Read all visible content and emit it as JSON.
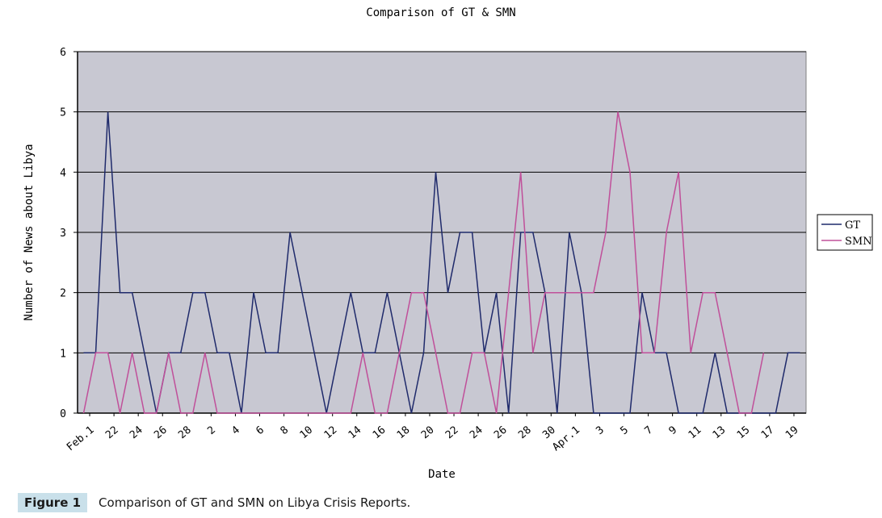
{
  "chart_data": {
    "type": "line",
    "title": "Comparison of GT & SMN",
    "xlabel": "Date",
    "ylabel": "Number of News about Libya",
    "ylim": [
      0,
      6
    ],
    "yticks": [
      0,
      1,
      2,
      3,
      4,
      5,
      6
    ],
    "grid": true,
    "legend_position": "right",
    "x_tick_labels": [
      "Feb.1",
      "22",
      "24",
      "26",
      "28",
      "2",
      "4",
      "6",
      "8",
      "10",
      "12",
      "14",
      "16",
      "18",
      "20",
      "22",
      "24",
      "26",
      "28",
      "30",
      "Apr.1",
      "3",
      "5",
      "7",
      "9",
      "11",
      "13",
      "15",
      "17",
      "19"
    ],
    "series": [
      {
        "name": "GT",
        "color": "#1f2a6b",
        "values": [
          1,
          1,
          5,
          2,
          2,
          1,
          0,
          1,
          1,
          2,
          2,
          1,
          1,
          0,
          2,
          1,
          1,
          3,
          2,
          1,
          0,
          1,
          2,
          1,
          1,
          2,
          1,
          0,
          1,
          4,
          2,
          3,
          3,
          1,
          2,
          0,
          3,
          3,
          2,
          0,
          3,
          2,
          0,
          0,
          0,
          0,
          2,
          1,
          1,
          0,
          0,
          0,
          1,
          0,
          0,
          0,
          0,
          0,
          1,
          1
        ]
      },
      {
        "name": "SMN",
        "color": "#c0509a",
        "values": [
          0,
          1,
          1,
          0,
          1,
          0,
          0,
          1,
          0,
          0,
          1,
          0,
          0,
          0,
          0,
          0,
          0,
          0,
          0,
          0,
          0,
          0,
          0,
          1,
          0,
          0,
          1,
          2,
          2,
          1,
          0,
          0,
          1,
          1,
          0,
          2,
          4,
          1,
          2,
          2,
          2,
          2,
          2,
          3,
          5,
          4,
          1,
          1,
          3,
          4,
          1,
          2,
          2,
          1,
          0,
          0,
          1
        ]
      }
    ]
  },
  "caption": {
    "label": "Figure 1",
    "text": "Comparison of GT and SMN on Libya Crisis Reports."
  }
}
